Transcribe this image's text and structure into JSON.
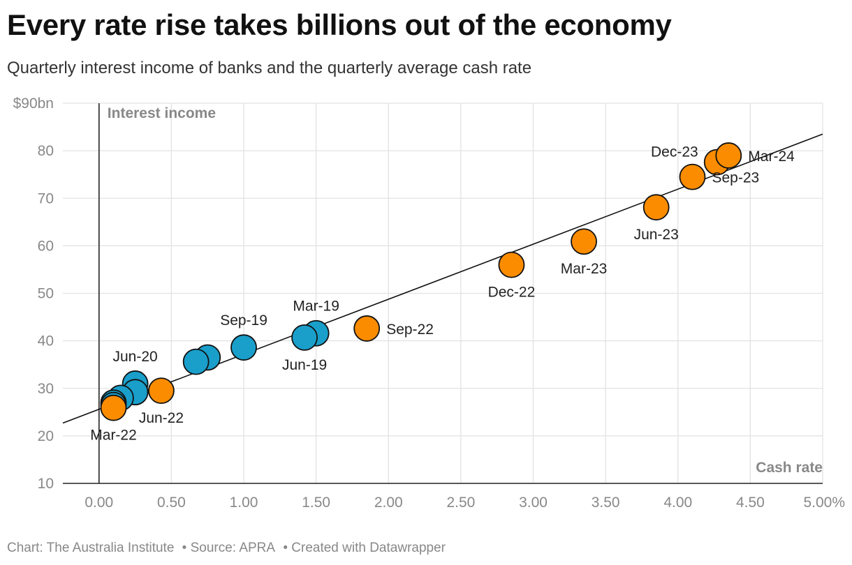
{
  "title": "Every rate rise takes billions out of the economy",
  "subtitle": "Quarterly interest income of banks and the quarterly average cash rate",
  "footer": {
    "chart": "Chart: The Australia Institute",
    "source": "• Source: APRA",
    "created": "• Created with Datawrapper"
  },
  "chart_data": {
    "type": "scatter",
    "xlabel": "Cash rate",
    "ylabel": "Interest income",
    "xlim": [
      -0.25,
      5.0
    ],
    "ylim": [
      10,
      90
    ],
    "x_ticks": [
      0,
      0.5,
      1,
      1.5,
      2,
      2.5,
      3,
      3.5,
      4,
      4.5,
      5
    ],
    "x_tick_labels": [
      "0.00",
      "0.50",
      "1.00",
      "1.50",
      "2.00",
      "2.50",
      "3.00",
      "3.50",
      "4.00",
      "4.50",
      "5.00%"
    ],
    "y_ticks": [
      10,
      20,
      30,
      40,
      50,
      60,
      70,
      80,
      90
    ],
    "y_tick_labels": [
      "10",
      "20",
      "30",
      "40",
      "50",
      "60",
      "70",
      "80",
      "$90bn"
    ],
    "grid": true,
    "colors": {
      "blue": "#1a9fcb",
      "orange": "#fb8c00",
      "trend": "#111111"
    },
    "trendline": {
      "x": [
        -0.25,
        5.0
      ],
      "y": [
        22.7,
        83.5
      ]
    },
    "points": [
      {
        "x": 1.5,
        "y": 41.6,
        "color": "blue",
        "label": "Mar-19",
        "pos": "above"
      },
      {
        "x": 1.42,
        "y": 40.7,
        "color": "blue",
        "label": "Jun-19",
        "pos": "below"
      },
      {
        "x": 1.0,
        "y": 38.6,
        "color": "blue",
        "label": "Sep-19",
        "pos": "above"
      },
      {
        "x": 0.75,
        "y": 36.5,
        "color": "blue",
        "label": ""
      },
      {
        "x": 0.67,
        "y": 35.6,
        "color": "blue",
        "label": ""
      },
      {
        "x": 0.25,
        "y": 31.0,
        "color": "blue",
        "label": "Jun-20",
        "pos": "above"
      },
      {
        "x": 0.25,
        "y": 29.2,
        "color": "blue",
        "label": ""
      },
      {
        "x": 0.15,
        "y": 28.0,
        "color": "blue",
        "label": ""
      },
      {
        "x": 0.1,
        "y": 27.0,
        "color": "blue",
        "label": ""
      },
      {
        "x": 0.1,
        "y": 26.5,
        "color": "blue",
        "label": ""
      },
      {
        "x": 0.1,
        "y": 25.9,
        "color": "orange",
        "label": "Mar-22",
        "pos": "below"
      },
      {
        "x": 0.43,
        "y": 29.5,
        "color": "orange",
        "label": "Jun-22",
        "pos": "below"
      },
      {
        "x": 1.85,
        "y": 42.6,
        "color": "orange",
        "label": "Sep-22",
        "pos": "right"
      },
      {
        "x": 2.85,
        "y": 56.0,
        "color": "orange",
        "label": "Dec-22",
        "pos": "below"
      },
      {
        "x": 3.35,
        "y": 60.9,
        "color": "orange",
        "label": "Mar-23",
        "pos": "below"
      },
      {
        "x": 3.85,
        "y": 68.1,
        "color": "orange",
        "label": "Jun-23",
        "pos": "below"
      },
      {
        "x": 4.1,
        "y": 74.5,
        "color": "orange",
        "label": "Sep-23",
        "pos": "right"
      },
      {
        "x": 4.27,
        "y": 77.6,
        "color": "orange",
        "label": "Dec-23",
        "pos": "left"
      },
      {
        "x": 4.35,
        "y": 79.0,
        "color": "orange",
        "label": "Mar-24",
        "pos": "right"
      }
    ]
  }
}
